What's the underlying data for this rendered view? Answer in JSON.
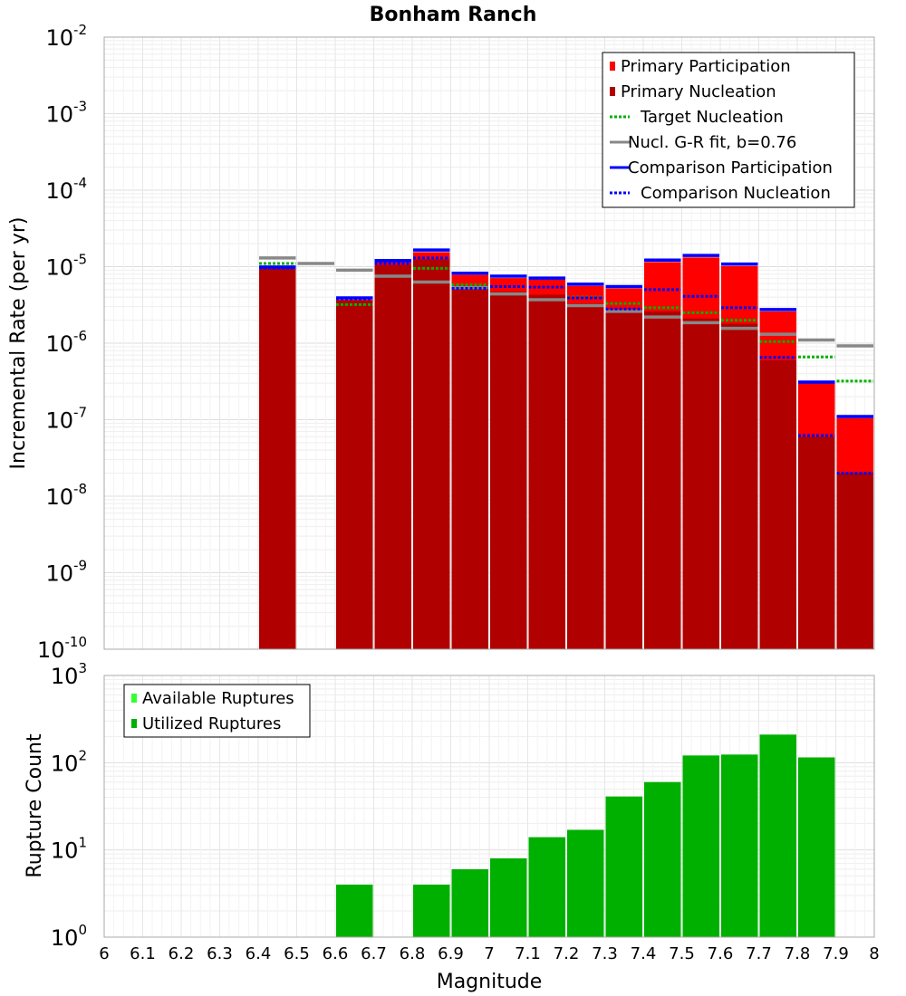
{
  "chart_data": [
    {
      "type": "bar",
      "title": "Bonham Ranch",
      "xlabel": "",
      "ylabel": "Incremental Rate (per yr)",
      "yscale": "log",
      "ylim": [
        1e-10,
        0.01
      ],
      "xlim": [
        6.0,
        8.0
      ],
      "grid": true,
      "legend_position": "top-right",
      "y_tick_labels": [
        {
          "value": 1e-10,
          "base": "10",
          "exp": "-10"
        },
        {
          "value": 1e-09,
          "base": "10",
          "exp": "-9"
        },
        {
          "value": 1e-08,
          "base": "10",
          "exp": "-8"
        },
        {
          "value": 1e-07,
          "base": "10",
          "exp": "-7"
        },
        {
          "value": 1e-06,
          "base": "10",
          "exp": "-6"
        },
        {
          "value": 1e-05,
          "base": "10",
          "exp": "-5"
        },
        {
          "value": 0.0001,
          "base": "10",
          "exp": "-4"
        },
        {
          "value": 0.001,
          "base": "10",
          "exp": "-3"
        },
        {
          "value": 0.01,
          "base": "10",
          "exp": "-2"
        }
      ],
      "bin_width": 0.1,
      "x": [
        6.45,
        6.55,
        6.65,
        6.75,
        6.85,
        6.95,
        7.05,
        7.15,
        7.25,
        7.35,
        7.45,
        7.55,
        7.65,
        7.75,
        7.85,
        7.95
      ],
      "series": [
        {
          "name": "Primary Participation",
          "color": "#ff0000",
          "style": "bar",
          "values": [
            9.5e-06,
            null,
            3.7e-06,
            1.15e-05,
            1.55e-05,
            7.8e-06,
            7.1e-06,
            6.8e-06,
            5.6e-06,
            5.2e-06,
            1.15e-05,
            1.32e-05,
            1.02e-05,
            2.6e-06,
            3e-07,
            1.05e-07
          ]
        },
        {
          "name": "Primary Nucleation",
          "color": "#b00000",
          "style": "bar",
          "values": [
            9.5e-06,
            null,
            3.6e-06,
            1.05e-05,
            1.25e-05,
            5.1e-06,
            4.7e-06,
            4.3e-06,
            3.3e-06,
            2.6e-06,
            2.6e-06,
            2.1e-06,
            1.8e-06,
            6e-07,
            6e-08,
            2e-08
          ]
        },
        {
          "name": "Target Nucleation",
          "color": "#00b000",
          "style": "dotted",
          "values": [
            1.1e-05,
            null,
            3.2e-06,
            null,
            9.5e-06,
            5.8e-06,
            null,
            null,
            4e-06,
            3.3e-06,
            2.9e-06,
            2.5e-06,
            2e-06,
            1.05e-06,
            6.6e-07,
            3.2e-07
          ]
        },
        {
          "name": "Nucl. G-R fit, b=0.76",
          "color": "#888888",
          "style": "solid",
          "values": [
            1.3e-05,
            1.1e-05,
            9e-06,
            7.5e-06,
            6.3e-06,
            5.3e-06,
            4.4e-06,
            3.7e-06,
            3.1e-06,
            2.6e-06,
            2.2e-06,
            1.85e-06,
            1.56e-06,
            1.31e-06,
            1.1e-06,
            9.2e-07
          ]
        },
        {
          "name": "Comparison Participation",
          "color": "#0000ff",
          "style": "solid",
          "values": [
            9.9e-06,
            null,
            3.9e-06,
            1.2e-05,
            1.65e-05,
            8.2e-06,
            7.5e-06,
            7.1e-06,
            5.9e-06,
            5.5e-06,
            1.22e-05,
            1.4e-05,
            1.08e-05,
            2.75e-06,
            3.1e-07,
            1.1e-07
          ]
        },
        {
          "name": "Comparison Nucleation",
          "color": "#0000ff",
          "style": "dotted",
          "values": [
            9.6e-06,
            null,
            3.8e-06,
            1.1e-05,
            1.3e-05,
            5.2e-06,
            5.5e-06,
            5.4e-06,
            3.9e-06,
            2.8e-06,
            5e-06,
            4.1e-06,
            2.9e-06,
            6.5e-07,
            6.2e-08,
            2e-08
          ]
        }
      ],
      "legend": [
        {
          "label": "Primary Participation",
          "color": "#ff0000",
          "style": "square"
        },
        {
          "label": "Primary Nucleation",
          "color": "#b00000",
          "style": "square"
        },
        {
          "label": "Target Nucleation",
          "color": "#00b000",
          "style": "dotted"
        },
        {
          "label": "Nucl. G-R fit, b=0.76",
          "color": "#888888",
          "style": "solid"
        },
        {
          "label": "Comparison Participation",
          "color": "#0000ff",
          "style": "solid"
        },
        {
          "label": "Comparison Nucleation",
          "color": "#0000ff",
          "style": "dotted"
        }
      ]
    },
    {
      "type": "bar",
      "title": "",
      "xlabel": "Magnitude",
      "ylabel": "Rupture Count",
      "yscale": "log",
      "ylim": [
        1,
        1000
      ],
      "xlim": [
        6.0,
        8.0
      ],
      "grid": true,
      "legend_position": "top-left",
      "x_tick_labels": [
        "6",
        "6.1",
        "6.2",
        "6.3",
        "6.4",
        "6.5",
        "6.6",
        "6.7",
        "6.8",
        "6.9",
        "7",
        "7.1",
        "7.2",
        "7.3",
        "7.4",
        "7.5",
        "7.6",
        "7.7",
        "7.8",
        "7.9",
        "8"
      ],
      "y_tick_labels": [
        {
          "value": 1,
          "base": "10",
          "exp": "0"
        },
        {
          "value": 10,
          "base": "10",
          "exp": "1"
        },
        {
          "value": 100,
          "base": "10",
          "exp": "2"
        },
        {
          "value": 1000,
          "base": "10",
          "exp": "3"
        }
      ],
      "bin_width": 0.1,
      "x": [
        6.65,
        6.85,
        6.95,
        7.05,
        7.15,
        7.25,
        7.35,
        7.45,
        7.55,
        7.65,
        7.75,
        7.85
      ],
      "series": [
        {
          "name": "Utilized Ruptures",
          "color": "#00b000",
          "values": [
            4,
            4,
            6,
            8,
            14,
            17,
            41,
            60,
            121,
            124,
            210,
            115
          ]
        }
      ],
      "legend": [
        {
          "label": "Available Ruptures",
          "color": "#33ff33",
          "style": "square"
        },
        {
          "label": "Utilized Ruptures",
          "color": "#00b000",
          "style": "square"
        }
      ]
    }
  ]
}
